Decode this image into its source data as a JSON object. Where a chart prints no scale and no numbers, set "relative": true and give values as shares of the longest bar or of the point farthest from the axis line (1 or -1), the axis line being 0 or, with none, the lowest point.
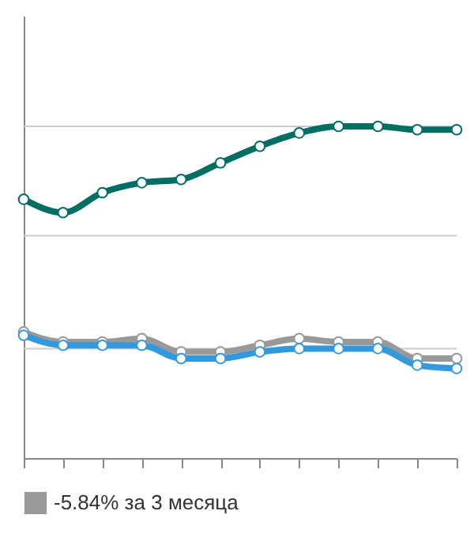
{
  "chart_data": {
    "type": "line",
    "relative": true,
    "categories": [
      null,
      null,
      null,
      null,
      null,
      null,
      null,
      null,
      null,
      null,
      null,
      null
    ],
    "series": [
      {
        "color": "#006e63",
        "values": [
          0.78,
          0.74,
          0.8,
          0.83,
          0.84,
          0.89,
          0.94,
          0.98,
          1.0,
          1.0,
          0.99,
          0.99
        ]
      },
      {
        "name": "-5.84% за 3 месяца",
        "color": "#999999",
        "values": [
          0.38,
          0.35,
          0.35,
          0.36,
          0.32,
          0.32,
          0.34,
          0.36,
          0.35,
          0.35,
          0.3,
          0.3
        ]
      },
      {
        "color": "#3399dd",
        "values": [
          0.37,
          0.34,
          0.34,
          0.34,
          0.3,
          0.3,
          0.32,
          0.33,
          0.33,
          0.33,
          0.28,
          0.27
        ]
      }
    ],
    "ref_lines": [
      {
        "axis": "y",
        "value": 0.33,
        "color": "#cccccc"
      },
      {
        "axis": "y",
        "value": 0.67,
        "color": "#cccccc"
      },
      {
        "axis": "y",
        "value": 1.0,
        "color": "#cccccc"
      }
    ],
    "legend": "bottom",
    "marker": "circle",
    "line_style": "solid"
  }
}
